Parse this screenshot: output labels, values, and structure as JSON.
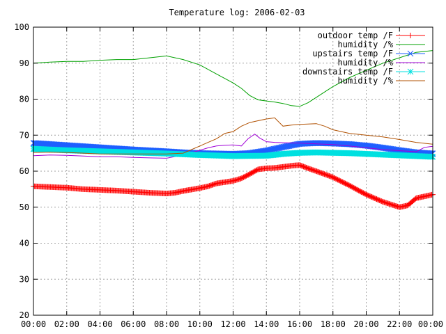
{
  "chart_data": {
    "type": "line",
    "title": "Temperature log: 2006-02-03",
    "xlabel": "",
    "ylabel": "",
    "xlim": [
      0,
      24
    ],
    "ylim": [
      20,
      100
    ],
    "x_ticks": [
      "00:00",
      "02:00",
      "04:00",
      "06:00",
      "08:00",
      "10:00",
      "12:00",
      "14:00",
      "16:00",
      "18:00",
      "20:00",
      "22:00",
      "00:00"
    ],
    "y_ticks": [
      "20",
      "30",
      "40",
      "50",
      "60",
      "70",
      "80",
      "90",
      "100"
    ],
    "grid": true,
    "legend_position": "top-right",
    "series": [
      {
        "name": "outdoor temp /F",
        "color": "#ff0000",
        "marker": "plus",
        "x": [
          0,
          1,
          2,
          3,
          4,
          5,
          6,
          7,
          8,
          8.5,
          9,
          9.5,
          10,
          10.5,
          11,
          12,
          12.5,
          13,
          13.5,
          14,
          14.5,
          15,
          15.5,
          16,
          16.5,
          17,
          18,
          19,
          20,
          21,
          22,
          22.5,
          23,
          24
        ],
        "y": [
          55.8,
          55.6,
          55.4,
          55.0,
          54.8,
          54.6,
          54.3,
          54.0,
          53.8,
          54.0,
          54.5,
          54.9,
          55.3,
          55.8,
          56.6,
          57.3,
          58.0,
          59.2,
          60.5,
          60.8,
          60.9,
          61.2,
          61.5,
          61.7,
          60.8,
          60.0,
          58.3,
          56.0,
          53.5,
          51.5,
          50.0,
          50.5,
          52.5,
          53.5
        ]
      },
      {
        "name": "humidity /%",
        "color": "#00a000",
        "marker": "none",
        "x": [
          0,
          1,
          2,
          3,
          4,
          5,
          6,
          7,
          8,
          9,
          10,
          11,
          12,
          12.5,
          13,
          13.5,
          14,
          14.5,
          15,
          15.5,
          16,
          16.5,
          17,
          18,
          19,
          20,
          21,
          22,
          23,
          24
        ],
        "y": [
          90.0,
          90.3,
          90.5,
          90.5,
          90.8,
          91.0,
          91.0,
          91.5,
          92.0,
          91.0,
          89.5,
          87.0,
          84.5,
          83.0,
          81.0,
          79.8,
          79.5,
          79.2,
          78.8,
          78.2,
          78.0,
          79.0,
          80.5,
          83.5,
          86.0,
          88.0,
          90.0,
          91.5,
          93.0,
          93.5
        ]
      },
      {
        "name": "upstairs temp /F",
        "color": "#1e5fff",
        "marker": "cross",
        "x": [
          0,
          2,
          4,
          6,
          8,
          9,
          10,
          11,
          12,
          13,
          14,
          15,
          16,
          17,
          18,
          19,
          20,
          21,
          22,
          23,
          24
        ],
        "y": [
          67.8,
          67.2,
          66.6,
          66.0,
          65.5,
          65.2,
          65.0,
          64.9,
          64.8,
          65.0,
          65.7,
          66.7,
          67.6,
          67.8,
          67.7,
          67.5,
          67.1,
          66.5,
          65.8,
          65.2,
          64.9
        ]
      },
      {
        "name": "humidity /%",
        "color": "#a000d8",
        "marker": "none",
        "x": [
          0,
          1,
          2,
          3,
          4,
          5,
          6,
          7,
          8,
          9,
          10,
          10.5,
          11,
          11.5,
          12,
          12.5,
          12.9,
          13.3,
          13.6,
          14,
          14.5,
          15,
          16,
          17,
          18,
          19,
          20,
          21,
          22,
          23,
          23.5,
          24
        ],
        "y": [
          64.3,
          64.5,
          64.4,
          64.2,
          64.0,
          64.0,
          63.8,
          63.7,
          63.6,
          64.5,
          65.8,
          66.5,
          67.0,
          67.2,
          67.3,
          67.0,
          69.0,
          70.3,
          69.2,
          68.2,
          68.0,
          67.9,
          67.8,
          67.6,
          67.4,
          67.0,
          66.5,
          66.0,
          65.7,
          65.4,
          66.6,
          66.9
        ]
      },
      {
        "name": "downstairs temp /F",
        "color": "#00e0e0",
        "marker": "star",
        "x": [
          0,
          2,
          4,
          6,
          8,
          10,
          12,
          14,
          15,
          16,
          17,
          18,
          19,
          20,
          21,
          22,
          23,
          24
        ],
        "y": [
          66.2,
          65.8,
          65.5,
          65.2,
          64.9,
          64.5,
          64.2,
          64.3,
          64.8,
          65.1,
          65.2,
          65.1,
          65.0,
          64.8,
          64.6,
          64.4,
          64.2,
          64.0
        ]
      },
      {
        "name": "humidity /%",
        "color": "#b05000",
        "marker": "none",
        "x": [
          0,
          1,
          2,
          3,
          4,
          5,
          6,
          7,
          8,
          9,
          9.5,
          10,
          10.5,
          11,
          11.5,
          12,
          12.5,
          13,
          13.5,
          14,
          14.5,
          15,
          15.5,
          16,
          17,
          17.5,
          18,
          19,
          20,
          21,
          22,
          23,
          24
        ],
        "y": [
          65.2,
          65.3,
          65.2,
          65.0,
          64.8,
          64.8,
          64.8,
          64.8,
          64.8,
          65.0,
          66.0,
          67.0,
          68.0,
          69.0,
          70.5,
          71.0,
          72.5,
          73.5,
          74.0,
          74.5,
          74.8,
          72.5,
          72.8,
          73.0,
          73.2,
          72.5,
          71.5,
          70.5,
          70.0,
          69.5,
          68.8,
          68.0,
          67.5
        ]
      }
    ]
  }
}
